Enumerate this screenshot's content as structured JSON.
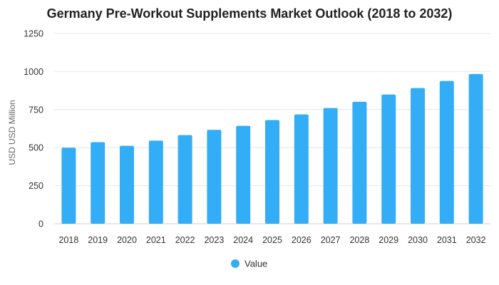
{
  "chart_data": {
    "type": "bar",
    "title": "Germany Pre-Workout Supplements Market Outlook (2018 to 2032)",
    "xlabel": "",
    "ylabel": "USD USD Million",
    "categories": [
      "2018",
      "2019",
      "2020",
      "2021",
      "2022",
      "2023",
      "2024",
      "2025",
      "2026",
      "2027",
      "2028",
      "2029",
      "2030",
      "2031",
      "2032"
    ],
    "series": [
      {
        "name": "Value",
        "values": [
          500,
          536,
          512,
          546,
          582,
          617,
          643,
          681,
          718,
          760,
          801,
          849,
          891,
          938,
          984
        ],
        "color": "#33adf5"
      }
    ],
    "ylim": [
      0,
      1250
    ],
    "yticks": [
      0,
      250,
      500,
      750,
      1000,
      1250
    ],
    "grid": true,
    "legend_position": "bottom-center"
  }
}
